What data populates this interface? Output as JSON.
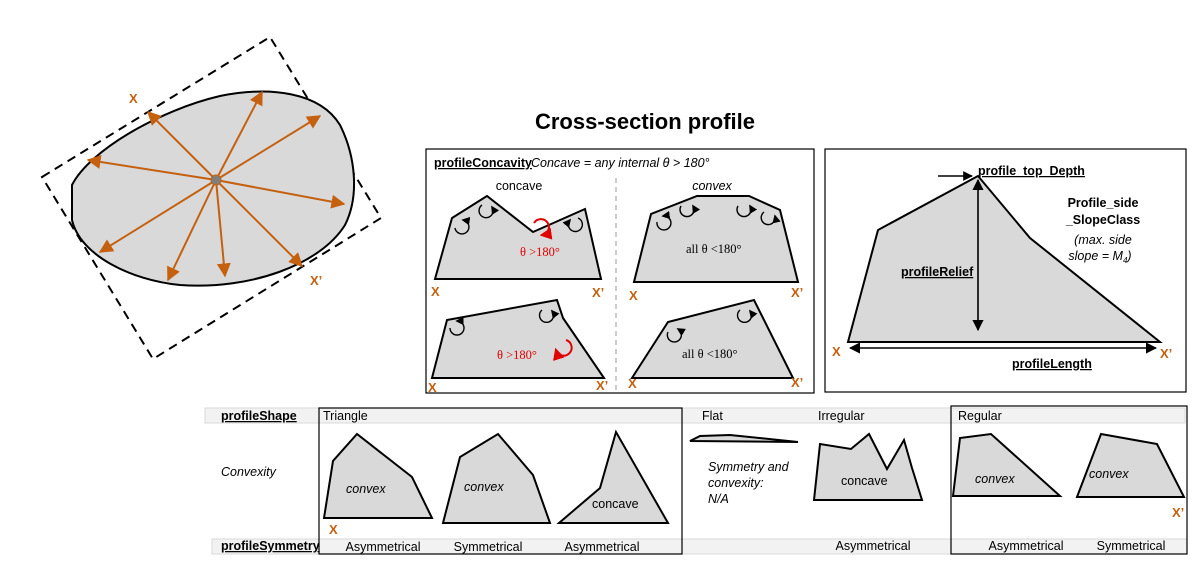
{
  "title": "Cross-section profile",
  "axis_marks": {
    "x": "X",
    "x_prime": "X’"
  },
  "concavity": {
    "heading": "profileConcavity",
    "definition": "Concave = any internal θ > 180°",
    "concave_label": "concave",
    "convex_label": "convex",
    "concave_angle": "θ >180°",
    "convex_angle": "all θ <180°"
  },
  "relief": {
    "top_depth": "profile_top_Depth",
    "side_slope_line1": "Profile_side",
    "side_slope_line2": "_SlopeClass",
    "max_slope_line1": "(max. side",
    "max_slope_line2": "slope = M",
    "max_slope_sub": "4",
    "max_slope_end": ")",
    "relief": "profileRelief",
    "length": "profileLength"
  },
  "table": {
    "row_shape": "profileShape",
    "row_convexity": "Convexity",
    "row_symmetry": "profileSymmetry",
    "shape_triangle": "Triangle",
    "shape_flat": "Flat",
    "shape_irregular": "Irregular",
    "shape_regular": "Regular",
    "convex": "convex",
    "concave": "concave",
    "na_line1": "Symmetry and",
    "na_line2": "convexity:",
    "na_line3": "N/A",
    "asymmetrical": "Asymmetrical",
    "symmetrical": "Symmetrical"
  },
  "colors": {
    "accent": "#c5600f",
    "fill": "#d9d9d9",
    "angle_highlight": "#e00000"
  }
}
